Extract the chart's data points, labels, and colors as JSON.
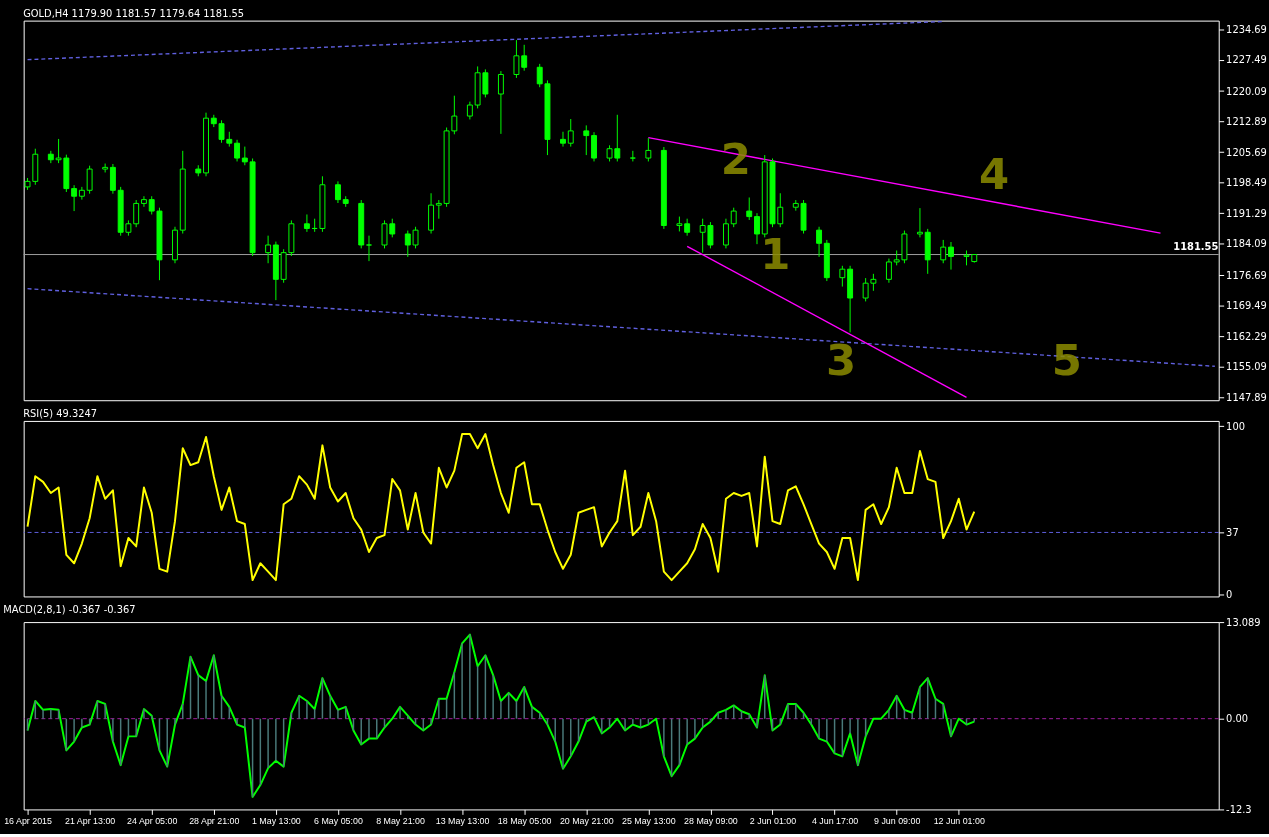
{
  "chart_data": [
    {
      "type": "candlestick",
      "title": "GOLD,H4 1179.90 1181.57 1179.64 1181.55",
      "color": "#00ff00",
      "grid": false,
      "tick_labels": "y",
      "categories": [
        null,
        null,
        null,
        null,
        null,
        null,
        null,
        null,
        null,
        null,
        null,
        null,
        null,
        null,
        null,
        null,
        null,
        null,
        null,
        null,
        null,
        null,
        null,
        null,
        null,
        null,
        null,
        null,
        null,
        null,
        null,
        null,
        null,
        null,
        null,
        null,
        null,
        null,
        null,
        null,
        null,
        null,
        null,
        null,
        null,
        null,
        null,
        null,
        null,
        null,
        null,
        null,
        null,
        null,
        null,
        null,
        null,
        null,
        null,
        null,
        null,
        null,
        null,
        null,
        null,
        null,
        null,
        null,
        null,
        null,
        null,
        null,
        null,
        null,
        null,
        null,
        null,
        null,
        null,
        null,
        null,
        null,
        null,
        null,
        null,
        null,
        null,
        null,
        null,
        null,
        null,
        null,
        null,
        null,
        null,
        null,
        null,
        null,
        null,
        null,
        null,
        null,
        null,
        null,
        null,
        null,
        null,
        null,
        null,
        null,
        null,
        null,
        null,
        null,
        null,
        null,
        null,
        null,
        null,
        null,
        null,
        null,
        null,
        null,
        null,
        null,
        null,
        null,
        null,
        null,
        null,
        null,
        null,
        null,
        null,
        null,
        null,
        null,
        null,
        null,
        null,
        null,
        null,
        null,
        null,
        null,
        null,
        null,
        null,
        null,
        null,
        null,
        null,
        null
      ],
      "ylim": [
        1147.2,
        1236.7
      ],
      "yticks": [
        1147.89,
        1155.09,
        1162.29,
        1169.49,
        1176.69,
        1184.09,
        1191.29,
        1198.49,
        1205.69,
        1212.89,
        1220.09,
        1227.49,
        1234.69
      ],
      "ohlc": [
        [
          1197.5,
          1199.6,
          1196.8,
          1198.8
        ],
        [
          1198.8,
          1206.5,
          1198.0,
          1205.2
        ],
        null,
        [
          1205.2,
          1206.0,
          1203.1,
          1203.9
        ],
        [
          1203.9,
          1208.8,
          1203.1,
          1204.3
        ],
        [
          1204.3,
          1205.1,
          1196.3,
          1197.1
        ],
        [
          1197.1,
          1197.9,
          1191.8,
          1195.3
        ],
        [
          1195.3,
          1197.5,
          1194.5,
          1196.7
        ],
        [
          1196.7,
          1202.5,
          1195.9,
          1201.7
        ],
        null,
        [
          1201.7,
          1203.0,
          1200.9,
          1202.1
        ],
        [
          1202.1,
          1202.9,
          1195.9,
          1196.7
        ],
        [
          1196.7,
          1197.5,
          1186.0,
          1186.8
        ],
        [
          1186.8,
          1189.6,
          1186.0,
          1188.8
        ],
        [
          1188.8,
          1194.4,
          1188.0,
          1193.6
        ],
        [
          1193.6,
          1195.3,
          1192.8,
          1194.5
        ],
        [
          1194.5,
          1195.3,
          1191.0,
          1191.8
        ],
        [
          1191.8,
          1192.6,
          1175.5,
          1180.3
        ],
        null,
        [
          1180.3,
          1188.1,
          1179.5,
          1187.3
        ],
        [
          1187.3,
          1206.0,
          1186.5,
          1201.7
        ],
        null,
        [
          1201.7,
          1202.6,
          1200.0,
          1200.8
        ],
        [
          1200.8,
          1215.0,
          1200.0,
          1213.7
        ],
        [
          1213.7,
          1214.5,
          1211.6,
          1212.4
        ],
        [
          1212.4,
          1213.2,
          1207.9,
          1208.7
        ],
        [
          1208.7,
          1210.5,
          1207.0,
          1207.8
        ],
        [
          1207.8,
          1208.6,
          1203.5,
          1204.3
        ],
        [
          1204.3,
          1207.0,
          1202.6,
          1203.4
        ],
        [
          1203.4,
          1204.2,
          1181.2,
          1182.0
        ],
        null,
        [
          1182.0,
          1186.0,
          1179.5,
          1183.8
        ],
        [
          1183.8,
          1184.6,
          1170.8,
          1175.7
        ],
        [
          1175.7,
          1182.8,
          1174.9,
          1182.0
        ],
        [
          1182.0,
          1189.6,
          1181.2,
          1188.8
        ],
        null,
        [
          1188.8,
          1191.0,
          1186.9,
          1187.7
        ],
        [
          1187.7,
          1190.0,
          1186.9,
          1187.7
        ],
        [
          1187.7,
          1200.0,
          1186.9,
          1198.0
        ],
        null,
        [
          1198.0,
          1198.8,
          1193.7,
          1194.5
        ],
        [
          1194.5,
          1195.3,
          1192.8,
          1193.6
        ],
        null,
        [
          1193.6,
          1194.4,
          1183.0,
          1183.8
        ],
        [
          1183.8,
          1186.0,
          1180.0,
          1183.8
        ],
        null,
        [
          1183.8,
          1189.6,
          1183.0,
          1188.8
        ],
        [
          1188.8,
          1190.0,
          1185.6,
          1186.4
        ],
        null,
        [
          1186.4,
          1187.2,
          1181.0,
          1183.8
        ],
        [
          1183.8,
          1188.1,
          1183.0,
          1187.3
        ],
        null,
        [
          1187.3,
          1196.0,
          1186.5,
          1193.2
        ],
        [
          1193.2,
          1194.4,
          1190.0,
          1193.6
        ],
        [
          1193.6,
          1211.5,
          1192.8,
          1210.7
        ],
        [
          1210.7,
          1219.0,
          1209.9,
          1214.2
        ],
        null,
        [
          1214.2,
          1217.6,
          1213.4,
          1216.8
        ],
        [
          1216.8,
          1225.9,
          1216.0,
          1224.4
        ],
        [
          1224.4,
          1225.2,
          1218.6,
          1219.4
        ],
        null,
        [
          1219.4,
          1224.8,
          1210.0,
          1224.0
        ],
        null,
        [
          1224.0,
          1232.1,
          1223.2,
          1228.4
        ],
        [
          1228.4,
          1231.0,
          1224.9,
          1225.7
        ],
        null,
        [
          1225.7,
          1226.5,
          1221.0,
          1221.8
        ],
        [
          1221.8,
          1222.6,
          1205.0,
          1208.7
        ],
        null,
        [
          1208.7,
          1210.5,
          1207.0,
          1207.8
        ],
        [
          1207.8,
          1213.5,
          1207.0,
          1210.7
        ],
        null,
        [
          1210.7,
          1212.0,
          1205.0,
          1209.6
        ],
        [
          1209.6,
          1210.4,
          1203.5,
          1204.3
        ],
        null,
        [
          1204.3,
          1207.3,
          1203.5,
          1206.5
        ],
        [
          1206.5,
          1214.5,
          1203.5,
          1204.3
        ],
        null,
        [
          1204.3,
          1206.0,
          1203.5,
          1204.3
        ],
        null,
        [
          1204.3,
          1209.0,
          1203.5,
          1206.1
        ],
        null,
        [
          1206.1,
          1206.9,
          1187.6,
          1188.4
        ],
        null,
        [
          1188.4,
          1190.5,
          1187.0,
          1188.8
        ],
        [
          1188.8,
          1190.0,
          1186.0,
          1186.8
        ],
        null,
        [
          1186.8,
          1190.0,
          1182.0,
          1188.4
        ],
        [
          1188.4,
          1189.2,
          1183.0,
          1183.8
        ],
        null,
        [
          1183.8,
          1190.0,
          1183.0,
          1188.8
        ],
        [
          1188.8,
          1192.6,
          1188.0,
          1191.8
        ],
        null,
        [
          1191.8,
          1195.0,
          1189.7,
          1190.5
        ],
        [
          1190.5,
          1191.3,
          1184.0,
          1186.4
        ],
        [
          1186.4,
          1205.0,
          1185.6,
          1203.4
        ],
        [
          1203.4,
          1204.2,
          1188.0,
          1188.8
        ],
        [
          1188.8,
          1196.0,
          1188.0,
          1192.7
        ],
        null,
        [
          1192.7,
          1194.4,
          1191.9,
          1193.6
        ],
        [
          1193.6,
          1194.4,
          1186.5,
          1187.3
        ],
        null,
        [
          1187.3,
          1188.1,
          1181.0,
          1184.2
        ],
        [
          1184.2,
          1185.0,
          1175.3,
          1176.1
        ],
        null,
        [
          1176.1,
          1178.9,
          1174.0,
          1178.1
        ],
        [
          1178.1,
          1178.9,
          1163.2,
          1171.3
        ],
        null,
        [
          1171.3,
          1176.0,
          1170.5,
          1174.8
        ],
        [
          1174.8,
          1177.0,
          1173.0,
          1175.7
        ],
        null,
        [
          1175.7,
          1180.6,
          1174.9,
          1179.8
        ],
        [
          1179.8,
          1182.5,
          1179.0,
          1180.3
        ],
        [
          1180.3,
          1187.2,
          1179.5,
          1186.4
        ],
        null,
        [
          1186.4,
          1192.5,
          1185.6,
          1186.8
        ],
        [
          1186.8,
          1187.6,
          1177.0,
          1180.3
        ],
        null,
        [
          1180.3,
          1185.0,
          1179.5,
          1183.3
        ],
        [
          1183.3,
          1184.5,
          1178.0,
          1181.1
        ],
        null,
        [
          1181.1,
          1182.5,
          1179.0,
          1181.4
        ],
        [
          1179.9,
          1181.57,
          1179.64,
          1181.55
        ],
        null,
        null,
        null,
        null,
        null,
        null,
        null,
        null,
        null,
        null,
        null,
        null,
        null,
        null,
        null,
        null,
        null,
        null,
        null,
        null,
        null,
        null,
        null,
        null,
        null,
        null,
        null,
        null,
        null,
        null,
        null
      ],
      "series": [
        {
          "type": "line",
          "color": "#6060e0",
          "line_style": "dashed",
          "values": [
            1227.5,
            null,
            null,
            null,
            null,
            null,
            null,
            null,
            null,
            null,
            null,
            null,
            null,
            null,
            null,
            null,
            null,
            null,
            null,
            null,
            null,
            null,
            null,
            null,
            null,
            null,
            null,
            null,
            null,
            null,
            null,
            null,
            null,
            null,
            null,
            null,
            null,
            null,
            null,
            null,
            null,
            null,
            null,
            null,
            null,
            null,
            null,
            null,
            null,
            null,
            null,
            null,
            null,
            null,
            null,
            null,
            null,
            null,
            null,
            null,
            null,
            null,
            null,
            null,
            null,
            null,
            null,
            null,
            null,
            null,
            null,
            null,
            null,
            null,
            null,
            null,
            null,
            null,
            null,
            null,
            1233.6,
            null,
            null,
            null,
            null,
            null,
            null,
            null,
            null,
            null,
            null,
            null,
            null,
            null,
            null,
            null,
            null,
            null,
            null,
            null,
            null,
            null,
            null,
            null,
            null,
            null,
            null,
            null,
            null,
            null,
            null,
            null,
            null,
            null,
            null,
            null,
            null,
            null,
            1236.5,
            null,
            null,
            null,
            null,
            null,
            null,
            null,
            null,
            null,
            null,
            null,
            null,
            null,
            null,
            null,
            null,
            null,
            null,
            null,
            null,
            null,
            null,
            null,
            null,
            null,
            null,
            null,
            null,
            null,
            null,
            null,
            null,
            null,
            null,
            null
          ]
        },
        {
          "type": "line",
          "color": "#6060e0",
          "line_style": "dashed",
          "values": [
            1173.5,
            null,
            null,
            null,
            null,
            null,
            null,
            null,
            null,
            null,
            null,
            null,
            null,
            null,
            null,
            null,
            null,
            null,
            null,
            null,
            null,
            null,
            null,
            null,
            null,
            null,
            null,
            null,
            null,
            null,
            null,
            null,
            null,
            null,
            null,
            null,
            null,
            null,
            null,
            null,
            null,
            null,
            null,
            null,
            null,
            null,
            null,
            null,
            null,
            null,
            null,
            null,
            null,
            null,
            null,
            null,
            null,
            null,
            null,
            null,
            null,
            null,
            null,
            null,
            null,
            null,
            null,
            null,
            null,
            null,
            null,
            null,
            null,
            null,
            null,
            null,
            null,
            null,
            null,
            null,
            null,
            null,
            null,
            null,
            null,
            null,
            null,
            null,
            null,
            null,
            null,
            null,
            null,
            null,
            null,
            null,
            null,
            null,
            null,
            null,
            null,
            null,
            null,
            null,
            null,
            null,
            null,
            null,
            null,
            null,
            null,
            null,
            null,
            null,
            null,
            null,
            null,
            null,
            null,
            null,
            null,
            null,
            null,
            null,
            null,
            null,
            null,
            null,
            null,
            null,
            null,
            null,
            null,
            null,
            null,
            null,
            null,
            null,
            null,
            null,
            null,
            null,
            null,
            null,
            null,
            null,
            null,
            null,
            null,
            null,
            null,
            null,
            null,
            1155.2
          ]
        },
        {
          "type": "line",
          "color": "#ff00ff",
          "line_style": "solid",
          "values": [
            null,
            null,
            null,
            null,
            null,
            null,
            null,
            null,
            null,
            null,
            null,
            null,
            null,
            null,
            null,
            null,
            null,
            null,
            null,
            null,
            null,
            null,
            null,
            null,
            null,
            null,
            null,
            null,
            null,
            null,
            null,
            null,
            null,
            null,
            null,
            null,
            null,
            null,
            null,
            null,
            null,
            null,
            null,
            null,
            null,
            null,
            null,
            null,
            null,
            null,
            null,
            null,
            null,
            null,
            null,
            null,
            null,
            null,
            null,
            null,
            null,
            null,
            null,
            null,
            null,
            null,
            null,
            null,
            null,
            null,
            null,
            null,
            null,
            null,
            null,
            null,
            null,
            null,
            null,
            null,
            1209.1,
            null,
            null,
            null,
            null,
            null,
            null,
            null,
            null,
            null,
            null,
            null,
            null,
            null,
            null,
            null,
            null,
            null,
            null,
            null,
            null,
            null,
            null,
            null,
            null,
            null,
            null,
            null,
            null,
            null,
            null,
            null,
            null,
            null,
            null,
            null,
            null,
            null,
            null,
            null,
            null,
            null,
            null,
            null,
            null,
            null,
            null,
            null,
            null,
            null,
            null,
            null,
            null,
            null,
            null,
            null,
            null,
            null,
            null,
            null,
            null,
            null,
            null,
            null,
            null,
            null,
            1186.6,
            null,
            null,
            null,
            null,
            null,
            null,
            null
          ]
        },
        {
          "type": "line",
          "color": "#ff00ff",
          "line_style": "solid",
          "values": [
            null,
            null,
            null,
            null,
            null,
            null,
            null,
            null,
            null,
            null,
            null,
            null,
            null,
            null,
            null,
            null,
            null,
            null,
            null,
            null,
            null,
            null,
            null,
            null,
            null,
            null,
            null,
            null,
            null,
            null,
            null,
            null,
            null,
            null,
            null,
            null,
            null,
            null,
            null,
            null,
            null,
            null,
            null,
            null,
            null,
            null,
            null,
            null,
            null,
            null,
            null,
            null,
            null,
            null,
            null,
            null,
            null,
            null,
            null,
            null,
            null,
            null,
            null,
            null,
            null,
            null,
            null,
            null,
            null,
            null,
            null,
            null,
            null,
            null,
            null,
            null,
            null,
            null,
            null,
            null,
            null,
            null,
            null,
            null,
            null,
            1183.5,
            null,
            null,
            null,
            null,
            null,
            null,
            null,
            null,
            null,
            null,
            null,
            null,
            null,
            null,
            null,
            null,
            null,
            null,
            null,
            null,
            null,
            null,
            null,
            null,
            null,
            null,
            null,
            null,
            null,
            null,
            null,
            null,
            null,
            null,
            null,
            1147.9,
            null,
            null,
            null,
            null,
            null,
            null,
            null,
            null,
            null,
            null,
            null,
            null,
            null,
            null,
            null,
            null,
            null,
            null,
            null,
            null,
            null,
            null,
            null,
            null,
            null,
            null,
            null,
            null,
            null,
            null,
            null,
            null
          ]
        }
      ],
      "ref_lines": [
        {
          "axis": "y",
          "value": 1181.55,
          "label": "1181.55",
          "color": "#a0a0a0"
        }
      ],
      "annotations": [
        "1",
        "2",
        "3",
        "4",
        "5"
      ]
    },
    {
      "type": "line",
      "title": "RSI(5) 49.3247",
      "grid": false,
      "tick_labels": "y",
      "ylim": [
        -1.0,
        103.2
      ],
      "yticks": [
        0,
        37,
        100
      ],
      "categories": [
        null,
        null,
        null,
        null,
        null,
        null,
        null,
        null,
        null,
        null,
        null,
        null,
        null,
        null,
        null,
        null,
        null,
        null,
        null,
        null,
        null,
        null,
        null,
        null,
        null,
        null,
        null,
        null,
        null,
        null,
        null,
        null,
        null,
        null,
        null,
        null,
        null,
        null,
        null,
        null,
        null,
        null,
        null,
        null,
        null,
        null,
        null,
        null,
        null,
        null,
        null,
        null,
        null,
        null,
        null,
        null,
        null,
        null,
        null,
        null,
        null,
        null,
        null,
        null,
        null,
        null,
        null,
        null,
        null,
        null,
        null,
        null,
        null,
        null,
        null,
        null,
        null,
        null,
        null,
        null,
        null,
        null,
        null,
        null,
        null,
        null,
        null,
        null,
        null,
        null,
        null,
        null,
        null,
        null,
        null,
        null,
        null,
        null,
        null,
        null,
        null,
        null,
        null,
        null,
        null,
        null,
        null,
        null,
        null,
        null,
        null,
        null,
        null,
        null,
        null,
        null,
        null,
        null,
        null,
        null,
        null,
        null,
        null,
        null,
        null,
        null,
        null,
        null,
        null,
        null,
        null,
        null,
        null,
        null,
        null,
        null,
        null,
        null,
        null,
        null,
        null,
        null,
        null,
        null,
        null,
        null,
        null,
        null,
        null,
        null,
        null,
        null,
        null,
        null
      ],
      "ref_lines": [
        {
          "axis": "y",
          "value": 37,
          "color": "#6060e0",
          "line_style": "dashed"
        }
      ],
      "series": [
        {
          "type": "line",
          "color": "#ffff00",
          "values": [
            40.4,
            70.4,
            67.0,
            60.4,
            63.7,
            23.7,
            18.7,
            30.4,
            45.4,
            70.4,
            57.0,
            62.0,
            17.0,
            33.7,
            28.7,
            63.7,
            48.7,
            15.4,
            13.7,
            43.7,
            87.0,
            77.0,
            78.7,
            93.7,
            70.4,
            50.4,
            63.7,
            43.7,
            42.0,
            8.7,
            18.7,
            13.7,
            8.7,
            53.7,
            57.0,
            70.4,
            65.4,
            57.0,
            88.7,
            63.7,
            55.4,
            60.4,
            45.4,
            38.7,
            25.4,
            33.7,
            35.4,
            68.7,
            62.0,
            38.7,
            60.4,
            37.0,
            30.4,
            75.4,
            63.7,
            73.7,
            95.4,
            95.4,
            87.0,
            95.4,
            77.0,
            60.4,
            48.7,
            75.4,
            78.7,
            53.7,
            53.7,
            38.7,
            25.4,
            15.4,
            23.7,
            48.7,
            50.4,
            52.0,
            28.7,
            37.0,
            43.7,
            73.7,
            35.4,
            40.4,
            60.4,
            43.7,
            13.7,
            8.7,
            13.7,
            18.7,
            27.0,
            42.0,
            33.7,
            13.7,
            57.0,
            60.4,
            58.7,
            60.4,
            28.7,
            82.0,
            43.7,
            42.0,
            62.0,
            64.4,
            53.7,
            42.0,
            30.4,
            25.4,
            15.4,
            33.7,
            33.7,
            8.7,
            50.4,
            53.7,
            42.0,
            52.0,
            75.4,
            60.4,
            60.4,
            85.4,
            68.7,
            67.0,
            33.7,
            43.7,
            57.0,
            38.7,
            49.3,
            null,
            null,
            null,
            null,
            null,
            null,
            null,
            null,
            null,
            null,
            null,
            null,
            null,
            null,
            null,
            null,
            null,
            null,
            null,
            null,
            null,
            null,
            null,
            null,
            null,
            null,
            null,
            null,
            null,
            null,
            null
          ]
        }
      ]
    },
    {
      "type": "bar",
      "title": "MACD(2,8,1) -0.367 -0.367",
      "grid": false,
      "ylim": [
        -12.3,
        13.089
      ],
      "yticks": [
        -12.3,
        {
          "value": 0,
          "label": "0.00"
        },
        13.089
      ],
      "categories": [
        "16 Apr 2015",
        null,
        null,
        null,
        null,
        null,
        null,
        null,
        "21 Apr 13:00",
        null,
        null,
        null,
        null,
        null,
        null,
        null,
        "24 Apr 05:00",
        null,
        null,
        null,
        null,
        null,
        null,
        null,
        "28 Apr 21:00",
        null,
        null,
        null,
        null,
        null,
        null,
        null,
        "1 May 13:00",
        null,
        null,
        null,
        null,
        null,
        null,
        null,
        "6 May 05:00",
        null,
        null,
        null,
        null,
        null,
        null,
        null,
        "8 May 21:00",
        null,
        null,
        null,
        null,
        null,
        null,
        null,
        "13 May 13:00",
        null,
        null,
        null,
        null,
        null,
        null,
        null,
        "18 May 05:00",
        null,
        null,
        null,
        null,
        null,
        null,
        null,
        "20 May 21:00",
        null,
        null,
        null,
        null,
        null,
        null,
        null,
        "25 May 13:00",
        null,
        null,
        null,
        null,
        null,
        null,
        null,
        "28 May 09:00",
        null,
        null,
        null,
        null,
        null,
        null,
        null,
        "2 Jun 01:00",
        null,
        null,
        null,
        null,
        null,
        null,
        null,
        "4 Jun 17:00",
        null,
        null,
        null,
        null,
        null,
        null,
        null,
        "9 Jun 09:00",
        null,
        null,
        null,
        null,
        null,
        null,
        null,
        "12 Jun 01:00",
        null,
        null,
        null,
        null,
        null,
        null,
        null,
        null,
        null,
        null,
        null,
        null,
        null,
        null,
        null,
        null,
        null,
        null,
        null,
        null,
        null,
        null,
        null,
        null,
        null,
        null,
        null,
        null,
        null,
        null,
        null,
        null,
        null
      ],
      "ref_lines": [
        {
          "axis": "y",
          "value": 0,
          "color": "#a020a0",
          "line_style": "dashed"
        }
      ],
      "series": [
        {
          "type": "bar",
          "color": "#4a7a7a",
          "values": [
            -1.6,
            2.4,
            1.2,
            1.3,
            1.2,
            -4.3,
            -3.1,
            -1.2,
            -0.8,
            2.4,
            2.0,
            -3.1,
            -6.3,
            -2.4,
            -2.4,
            1.3,
            0.4,
            -4.3,
            -6.5,
            -0.8,
            2.0,
            8.4,
            5.9,
            5.1,
            8.6,
            3.1,
            1.6,
            -0.8,
            -1.2,
            -10.6,
            -9.0,
            -6.7,
            -5.7,
            -6.5,
            0.8,
            3.1,
            2.4,
            1.3,
            5.5,
            3.1,
            1.2,
            1.6,
            -1.6,
            -3.5,
            -2.7,
            -2.7,
            -1.2,
            0.0,
            1.6,
            0.4,
            -0.8,
            -1.6,
            -0.8,
            2.7,
            2.7,
            6.3,
            10.2,
            11.4,
            7.1,
            8.6,
            5.9,
            2.4,
            3.5,
            2.4,
            4.3,
            1.6,
            0.8,
            -0.8,
            -3.1,
            -6.8,
            -5.1,
            -3.1,
            -0.4,
            0.2,
            -2.0,
            -1.2,
            0.0,
            -1.6,
            -0.8,
            -1.2,
            -0.8,
            0.0,
            -5.1,
            -7.8,
            -6.3,
            -3.5,
            -2.7,
            -1.2,
            -0.4,
            0.8,
            1.2,
            1.8,
            1.0,
            0.6,
            -1.2,
            5.9,
            -1.6,
            -0.8,
            2.0,
            2.0,
            0.8,
            -0.8,
            -2.7,
            -3.1,
            -4.7,
            -5.1,
            -2.0,
            -6.3,
            -2.4,
            0.0,
            0.0,
            1.2,
            3.1,
            1.2,
            0.8,
            4.3,
            5.5,
            2.7,
            2.0,
            -2.4,
            0.0,
            -0.8,
            -0.4,
            null,
            null,
            null,
            null,
            null,
            null,
            null,
            null,
            null,
            null,
            null,
            null,
            null,
            null,
            null,
            null,
            null,
            null,
            null,
            null,
            null,
            null,
            null,
            null,
            null,
            null,
            null,
            null,
            null,
            null,
            null
          ]
        },
        {
          "type": "line",
          "color": "#00ff00",
          "values": [
            -1.6,
            2.4,
            1.2,
            1.3,
            1.2,
            -4.3,
            -3.1,
            -1.2,
            -0.8,
            2.4,
            2.0,
            -3.1,
            -6.3,
            -2.4,
            -2.4,
            1.3,
            0.4,
            -4.3,
            -6.5,
            -0.8,
            2.0,
            8.4,
            5.9,
            5.1,
            8.6,
            3.1,
            1.6,
            -0.8,
            -1.2,
            -10.6,
            -9.0,
            -6.7,
            -5.7,
            -6.5,
            0.8,
            3.1,
            2.4,
            1.3,
            5.5,
            3.1,
            1.2,
            1.6,
            -1.6,
            -3.5,
            -2.7,
            -2.7,
            -1.2,
            0.0,
            1.6,
            0.4,
            -0.8,
            -1.6,
            -0.8,
            2.7,
            2.7,
            6.3,
            10.2,
            11.4,
            7.1,
            8.6,
            5.9,
            2.4,
            3.5,
            2.4,
            4.3,
            1.6,
            0.8,
            -0.8,
            -3.1,
            -6.8,
            -5.1,
            -3.1,
            -0.4,
            0.2,
            -2.0,
            -1.2,
            0.0,
            -1.6,
            -0.8,
            -1.2,
            -0.8,
            0.0,
            -5.1,
            -7.8,
            -6.3,
            -3.5,
            -2.7,
            -1.2,
            -0.4,
            0.8,
            1.2,
            1.8,
            1.0,
            0.6,
            -1.2,
            5.9,
            -1.6,
            -0.8,
            2.0,
            2.0,
            0.8,
            -0.8,
            -2.7,
            -3.1,
            -4.7,
            -5.1,
            -2.0,
            -6.3,
            -2.4,
            0.0,
            0.0,
            1.2,
            3.1,
            1.2,
            0.8,
            4.3,
            5.5,
            2.7,
            2.0,
            -2.4,
            0.0,
            -0.8,
            -0.4,
            null,
            null,
            null,
            null,
            null,
            null,
            null,
            null,
            null,
            null,
            null,
            null,
            null,
            null,
            null,
            null,
            null,
            null,
            null,
            null,
            null,
            null,
            null,
            null,
            null,
            null,
            null,
            null,
            null,
            null,
            null
          ]
        }
      ]
    }
  ]
}
